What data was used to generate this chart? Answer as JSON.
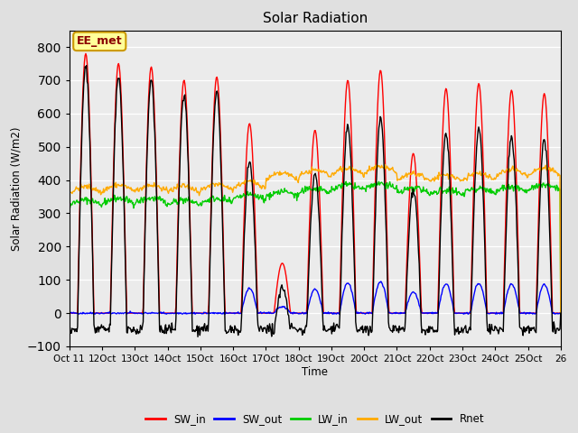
{
  "title": "Solar Radiation",
  "ylabel": "Solar Radiation (W/m2)",
  "xlabel": "Time",
  "annotation": "EE_met",
  "ylim": [
    -100,
    850
  ],
  "yticks": [
    -100,
    0,
    100,
    200,
    300,
    400,
    500,
    600,
    700,
    800
  ],
  "n_days": 15,
  "start_day": 11,
  "colors": {
    "SW_in": "#ff0000",
    "SW_out": "#0000ff",
    "LW_in": "#00cc00",
    "LW_out": "#ffaa00",
    "Rnet": "#000000"
  },
  "bg_color": "#e0e0e0",
  "plot_bg_color": "#ebebeb",
  "figsize": [
    6.4,
    4.8
  ],
  "dpi": 100,
  "xtick_labels": [
    "Oct 1",
    "1Oct",
    "2Oct",
    "3Oct",
    "4Oct",
    "5Oct",
    "6Oct",
    "7Oct",
    "8Oct",
    "9Oct",
    "20Oct",
    "21Oct",
    "22Oct",
    "23Oct",
    "24Oct",
    "25Oct",
    "26"
  ],
  "sw_peaks": [
    780,
    750,
    740,
    700,
    710,
    570,
    150,
    550,
    700,
    730,
    480,
    675,
    690,
    670,
    660
  ],
  "lw_in_base": [
    325,
    330,
    330,
    325,
    330,
    340,
    350,
    360,
    370,
    375,
    360,
    355,
    360,
    365,
    370
  ],
  "lw_out_base": [
    360,
    365,
    365,
    362,
    368,
    375,
    400,
    410,
    415,
    420,
    400,
    395,
    400,
    410,
    415
  ],
  "sw_out_scale_early": 0.0,
  "sw_out_scale_late": 0.13,
  "sw_out_transition_day": 5
}
